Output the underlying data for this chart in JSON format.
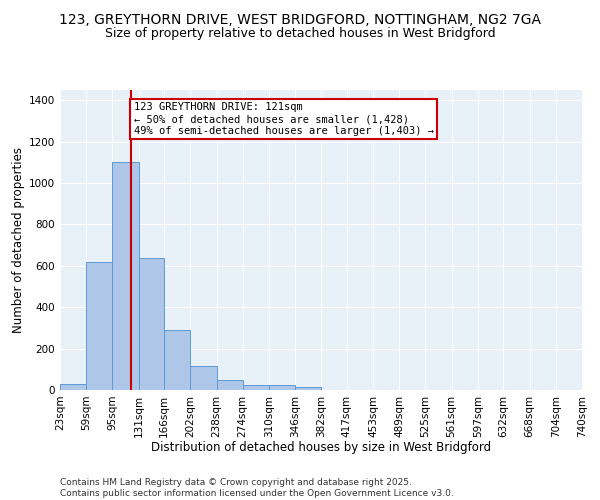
{
  "title1": "123, GREYTHORN DRIVE, WEST BRIDGFORD, NOTTINGHAM, NG2 7GA",
  "title2": "Size of property relative to detached houses in West Bridgford",
  "xlabel": "Distribution of detached houses by size in West Bridgford",
  "ylabel": "Number of detached properties",
  "categories": [
    "23sqm",
    "59sqm",
    "95sqm",
    "131sqm",
    "166sqm",
    "202sqm",
    "238sqm",
    "274sqm",
    "310sqm",
    "346sqm",
    "382sqm",
    "417sqm",
    "453sqm",
    "489sqm",
    "525sqm",
    "561sqm",
    "597sqm",
    "632sqm",
    "668sqm",
    "704sqm",
    "740sqm"
  ],
  "bar_values": [
    30,
    620,
    1100,
    640,
    290,
    115,
    50,
    25,
    25,
    15,
    0,
    0,
    0,
    0,
    0,
    0,
    0,
    0,
    0,
    0,
    0
  ],
  "bar_color": "#aec6e8",
  "bar_edge_color": "#5b9bd5",
  "vline_x": 121,
  "vline_color": "#cc0000",
  "annotation_text": "123 GREYTHORN DRIVE: 121sqm\n← 50% of detached houses are smaller (1,428)\n49% of semi-detached houses are larger (1,403) →",
  "annotation_box_color": "#ffffff",
  "annotation_box_edge": "#cc0000",
  "ylim": [
    0,
    1450
  ],
  "yticks": [
    0,
    200,
    400,
    600,
    800,
    1000,
    1200,
    1400
  ],
  "bin_edges": [
    23,
    59,
    95,
    131,
    166,
    202,
    238,
    274,
    310,
    346,
    382,
    417,
    453,
    489,
    525,
    561,
    597,
    632,
    668,
    704,
    740
  ],
  "bg_color": "#e8f0f8",
  "footer1": "Contains HM Land Registry data © Crown copyright and database right 2025.",
  "footer2": "Contains public sector information licensed under the Open Government Licence v3.0.",
  "title1_fontsize": 10,
  "title2_fontsize": 9,
  "xlabel_fontsize": 8.5,
  "ylabel_fontsize": 8.5,
  "tick_fontsize": 7.5,
  "annotation_fontsize": 7.5,
  "footer_fontsize": 6.5
}
